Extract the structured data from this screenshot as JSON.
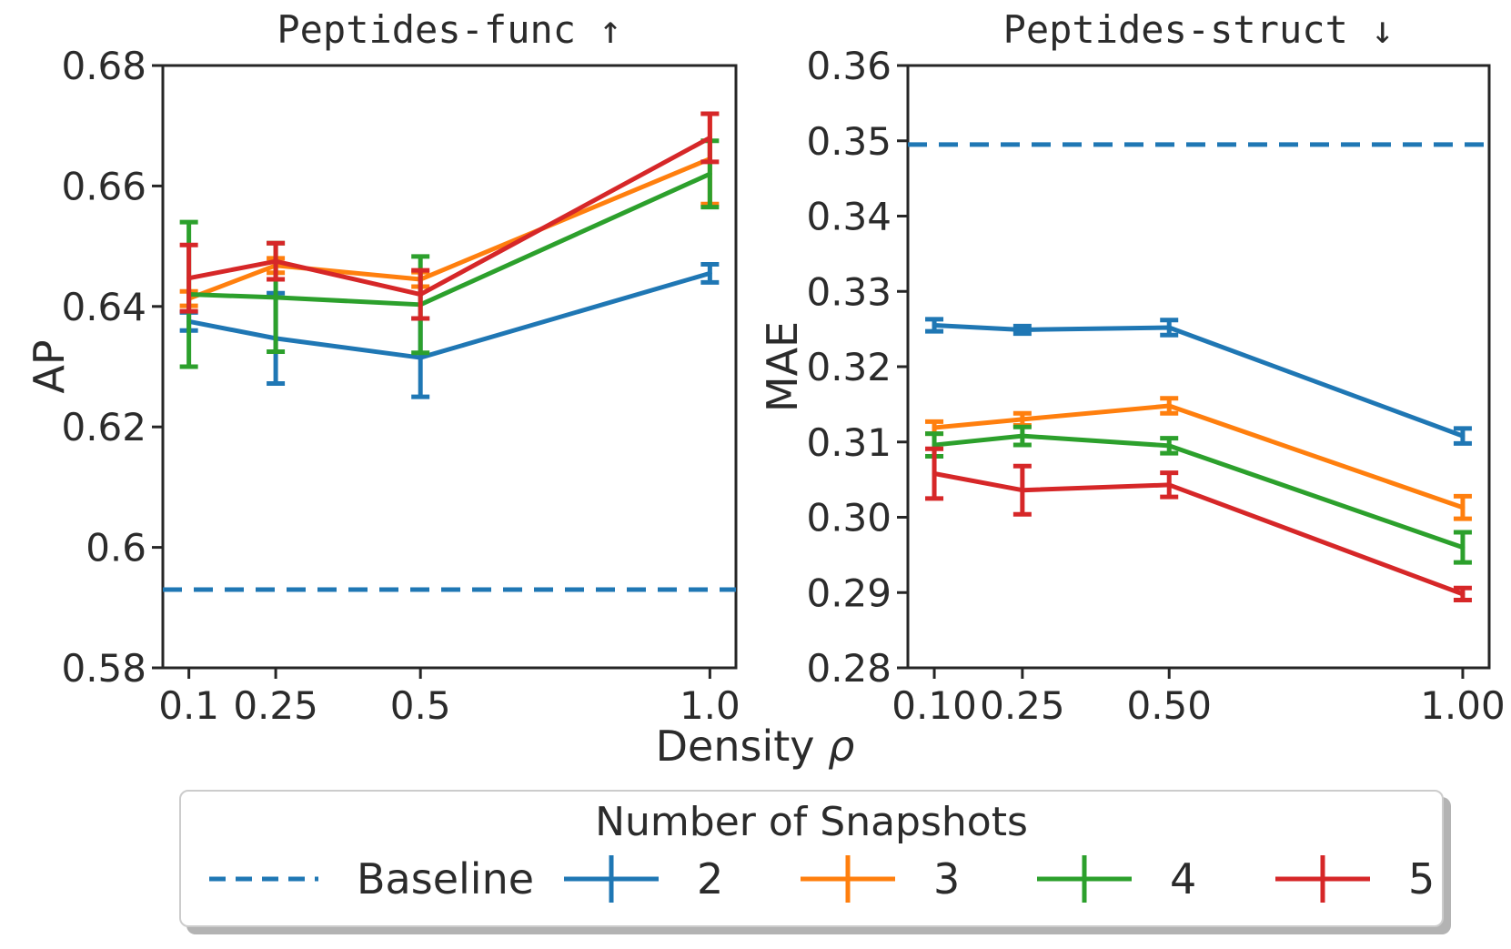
{
  "figure": {
    "background": "#ffffff",
    "text_color": "#2b2b2b",
    "axis_color": "#262626"
  },
  "chart_data": [
    {
      "id": "peptides-func",
      "type": "line",
      "title": "Peptides-func ↑",
      "ylabel": "AP",
      "xlim": [
        0.055,
        1.045
      ],
      "ylim": [
        0.58,
        0.68
      ],
      "grid": false,
      "x": [
        0.1,
        0.25,
        0.5,
        1.0
      ],
      "xticks": [
        {
          "v": 0.1,
          "label": "0.1"
        },
        {
          "v": 0.25,
          "label": "0.25"
        },
        {
          "v": 0.5,
          "label": "0.5"
        },
        {
          "v": 1.0,
          "label": "1.0"
        }
      ],
      "yticks": [
        {
          "v": 0.58,
          "label": "0.58"
        },
        {
          "v": 0.6,
          "label": "0.6"
        },
        {
          "v": 0.62,
          "label": "0.62"
        },
        {
          "v": 0.64,
          "label": "0.64"
        },
        {
          "v": 0.66,
          "label": "0.66"
        },
        {
          "v": 0.68,
          "label": "0.68"
        }
      ],
      "baseline": {
        "value": 0.593,
        "color": "#1f77b4",
        "style": "dashed",
        "name": "Baseline"
      },
      "series": [
        {
          "name": "2",
          "color": "#1f77b4",
          "y": [
            0.6375,
            0.6347,
            0.6315,
            0.6455
          ],
          "yerr": [
            0.0015,
            0.0075,
            0.0065,
            0.0015
          ]
        },
        {
          "name": "3",
          "color": "#ff7f0e",
          "y": [
            0.6413,
            0.6468,
            0.6445,
            0.6645
          ],
          "yerr": [
            0.0012,
            0.0012,
            0.0012,
            0.0075
          ]
        },
        {
          "name": "4",
          "color": "#2ca02c",
          "y": [
            0.642,
            0.6415,
            0.6403,
            0.662
          ],
          "yerr": [
            0.012,
            0.009,
            0.008,
            0.0055
          ]
        },
        {
          "name": "5",
          "color": "#d62728",
          "y": [
            0.6447,
            0.6475,
            0.642,
            0.668
          ],
          "yerr": [
            0.0055,
            0.003,
            0.004,
            0.004
          ]
        }
      ]
    },
    {
      "id": "peptides-struct",
      "type": "line",
      "title": "Peptides-struct ↓",
      "ylabel": "MAE",
      "xlim": [
        0.055,
        1.045
      ],
      "ylim": [
        0.28,
        0.36
      ],
      "grid": false,
      "x": [
        0.1,
        0.25,
        0.5,
        1.0
      ],
      "xticks": [
        {
          "v": 0.1,
          "label": "0.10"
        },
        {
          "v": 0.25,
          "label": "0.25"
        },
        {
          "v": 0.5,
          "label": "0.50"
        },
        {
          "v": 1.0,
          "label": "1.00"
        }
      ],
      "yticks": [
        {
          "v": 0.28,
          "label": "0.28"
        },
        {
          "v": 0.29,
          "label": "0.29"
        },
        {
          "v": 0.3,
          "label": "0.30"
        },
        {
          "v": 0.31,
          "label": "0.31"
        },
        {
          "v": 0.32,
          "label": "0.32"
        },
        {
          "v": 0.33,
          "label": "0.33"
        },
        {
          "v": 0.34,
          "label": "0.34"
        },
        {
          "v": 0.35,
          "label": "0.35"
        },
        {
          "v": 0.36,
          "label": "0.36"
        }
      ],
      "baseline": {
        "value": 0.3495,
        "color": "#1f77b4",
        "style": "dashed",
        "name": "Baseline"
      },
      "series": [
        {
          "name": "2",
          "color": "#1f77b4",
          "y": [
            0.3255,
            0.3249,
            0.3252,
            0.3108
          ],
          "yerr": [
            0.0008,
            0.0005,
            0.001,
            0.001
          ]
        },
        {
          "name": "3",
          "color": "#ff7f0e",
          "y": [
            0.3119,
            0.313,
            0.3148,
            0.3013
          ],
          "yerr": [
            0.0008,
            0.0008,
            0.001,
            0.0015
          ]
        },
        {
          "name": "4",
          "color": "#2ca02c",
          "y": [
            0.3096,
            0.3108,
            0.3095,
            0.296
          ],
          "yerr": [
            0.0015,
            0.0012,
            0.001,
            0.002
          ]
        },
        {
          "name": "5",
          "color": "#d62728",
          "y": [
            0.3058,
            0.3036,
            0.3043,
            0.2898
          ],
          "yerr": [
            0.0033,
            0.0032,
            0.0016,
            0.0008
          ]
        }
      ]
    }
  ],
  "xlabel": {
    "prefix": "Density",
    "symbol": "ρ"
  },
  "legend": {
    "title": "Number of Snapshots",
    "entries": [
      {
        "label": "Baseline",
        "color": "#1f77b4",
        "style": "dashed"
      },
      {
        "label": "2",
        "color": "#1f77b4",
        "style": "errorbar"
      },
      {
        "label": "3",
        "color": "#ff7f0e",
        "style": "errorbar"
      },
      {
        "label": "4",
        "color": "#2ca02c",
        "style": "errorbar"
      },
      {
        "label": "5",
        "color": "#d62728",
        "style": "errorbar"
      }
    ]
  }
}
